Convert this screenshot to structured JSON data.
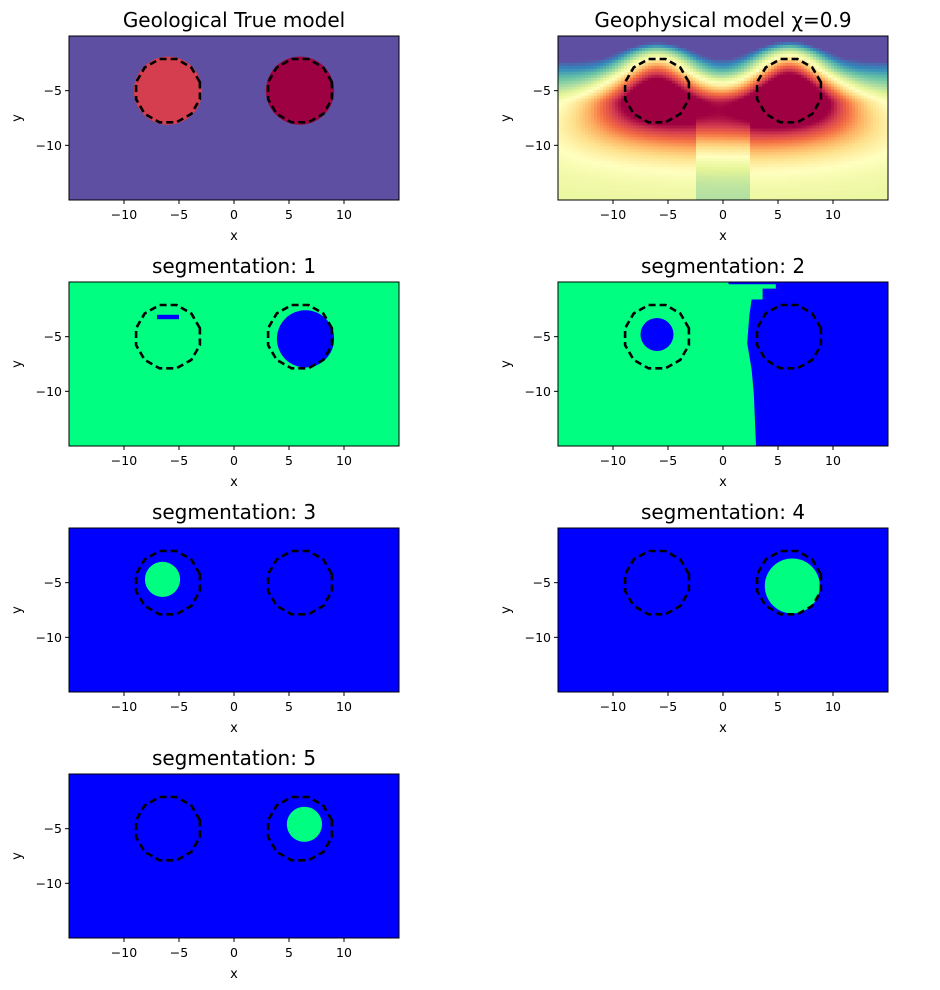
{
  "figure": {
    "colors": {
      "purple_bg": "#5e4fa2",
      "anomaly_left": "#d53e4f",
      "anomaly_right": "#9e0142",
      "seg_green": "#00ff80",
      "seg_blue": "#0000ff",
      "outline": "#000000"
    }
  },
  "chart_data": [
    {
      "type": "heatmap",
      "title": "Geological True model",
      "xlabel": "x",
      "ylabel": "y",
      "xlim": [
        -15,
        15
      ],
      "ylim": [
        -15,
        0
      ],
      "xticks": [
        "−10",
        "−5",
        "0",
        "5",
        "10"
      ],
      "yticks": [
        "−5",
        "−10"
      ],
      "colormap": "Spectral_r",
      "background": "#5e4fa2",
      "bodies": [
        {
          "cx": -6,
          "cy": -5,
          "r": 3.1,
          "color": "#d53e4f"
        },
        {
          "cx": 6,
          "cy": -5,
          "r": 3.1,
          "color": "#9e0142"
        }
      ],
      "outlines": [
        {
          "cx": -6,
          "cy": -5,
          "r": 3
        },
        {
          "cx": 6,
          "cy": -5,
          "r": 3
        }
      ]
    },
    {
      "type": "heatmap",
      "title": "Geophysical model χ=0.9",
      "xlabel": "x",
      "ylabel": "y",
      "xlim": [
        -15,
        15
      ],
      "ylim": [
        -15,
        0
      ],
      "xticks": [
        "−10",
        "−5",
        "0",
        "5",
        "10"
      ],
      "yticks": [
        "−5",
        "−10"
      ],
      "colormap": "Spectral_r",
      "peaks": [
        {
          "cx": -6,
          "cy": -5,
          "value": 0.85
        },
        {
          "cx": 6,
          "cy": -5,
          "value": 0.95
        }
      ],
      "outlines": [
        {
          "cx": -6,
          "cy": -5,
          "r": 3
        },
        {
          "cx": 6,
          "cy": -5,
          "r": 3
        }
      ]
    },
    {
      "type": "heatmap",
      "title": "segmentation: 1",
      "xlabel": "x",
      "ylabel": "y",
      "xlim": [
        -15,
        15
      ],
      "ylim": [
        -15,
        0
      ],
      "xticks": [
        "−10",
        "−5",
        "0",
        "5",
        "10"
      ],
      "yticks": [
        "−5",
        "−10"
      ],
      "background": "#00ff80",
      "regions": [
        {
          "shape": "circle",
          "cx": 6.5,
          "cy": -5.2,
          "r": 2.6,
          "color": "#0000ff"
        },
        {
          "shape": "rect",
          "x0": -7,
          "x1": -5,
          "y0": -3.4,
          "y1": -3.0,
          "color": "#0000ff"
        }
      ],
      "outlines": [
        {
          "cx": -6,
          "cy": -5,
          "r": 3
        },
        {
          "cx": 6,
          "cy": -5,
          "r": 3
        }
      ]
    },
    {
      "type": "heatmap",
      "title": "segmentation: 2",
      "xlabel": "x",
      "ylabel": "y",
      "xlim": [
        -15,
        15
      ],
      "ylim": [
        -15,
        0
      ],
      "xticks": [
        "−10",
        "−5",
        "0",
        "5",
        "10"
      ],
      "yticks": [
        "−5",
        "−10"
      ],
      "background": "#00ff80",
      "regions": [
        {
          "shape": "polygon",
          "points": [
            [
              0.5,
              -0.2
            ],
            [
              4.8,
              -0.2
            ],
            [
              4.8,
              -0.6
            ],
            [
              3.6,
              -0.6
            ],
            [
              3.6,
              -1.6
            ],
            [
              2.6,
              -1.6
            ],
            [
              2.4,
              -3.0
            ],
            [
              2.2,
              -5.6
            ],
            [
              2.6,
              -8.0
            ],
            [
              2.8,
              -10.2
            ],
            [
              3.0,
              -15
            ],
            [
              15,
              -15
            ],
            [
              15,
              0
            ],
            [
              0.5,
              0
            ]
          ],
          "color": "#0000ff"
        },
        {
          "shape": "circle",
          "cx": -6,
          "cy": -4.8,
          "r": 1.5,
          "color": "#0000ff"
        }
      ],
      "outlines": [
        {
          "cx": -6,
          "cy": -5,
          "r": 3
        },
        {
          "cx": 6,
          "cy": -5,
          "r": 3
        }
      ]
    },
    {
      "type": "heatmap",
      "title": "segmentation: 3",
      "xlabel": "x",
      "ylabel": "y",
      "xlim": [
        -15,
        15
      ],
      "ylim": [
        -15,
        0
      ],
      "xticks": [
        "−10",
        "−5",
        "0",
        "5",
        "10"
      ],
      "yticks": [
        "−5",
        "−10"
      ],
      "background": "#0000ff",
      "regions": [
        {
          "shape": "circle",
          "cx": -6.5,
          "cy": -4.7,
          "r": 1.6,
          "color": "#00ff80"
        }
      ],
      "outlines": [
        {
          "cx": -6,
          "cy": -5,
          "r": 3
        },
        {
          "cx": 6,
          "cy": -5,
          "r": 3
        }
      ]
    },
    {
      "type": "heatmap",
      "title": "segmentation: 4",
      "xlabel": "x",
      "ylabel": "y",
      "xlim": [
        -15,
        15
      ],
      "ylim": [
        -15,
        0
      ],
      "xticks": [
        "−10",
        "−5",
        "0",
        "5",
        "10"
      ],
      "yticks": [
        "−5",
        "−10"
      ],
      "background": "#0000ff",
      "regions": [
        {
          "shape": "circle",
          "cx": 6.3,
          "cy": -5.3,
          "r": 2.5,
          "color": "#00ff80"
        }
      ],
      "outlines": [
        {
          "cx": -6,
          "cy": -5,
          "r": 3
        },
        {
          "cx": 6,
          "cy": -5,
          "r": 3
        }
      ]
    },
    {
      "type": "heatmap",
      "title": "segmentation: 5",
      "xlabel": "x",
      "ylabel": "y",
      "xlim": [
        -15,
        15
      ],
      "ylim": [
        -15,
        0
      ],
      "xticks": [
        "−10",
        "−5",
        "0",
        "5",
        "10"
      ],
      "yticks": [
        "−5",
        "−10"
      ],
      "background": "#0000ff",
      "regions": [
        {
          "shape": "circle",
          "cx": 6.4,
          "cy": -4.6,
          "r": 1.6,
          "color": "#00ff80"
        }
      ],
      "outlines": [
        {
          "cx": -6,
          "cy": -5,
          "r": 3
        },
        {
          "cx": 6,
          "cy": -5,
          "r": 3
        }
      ]
    }
  ]
}
